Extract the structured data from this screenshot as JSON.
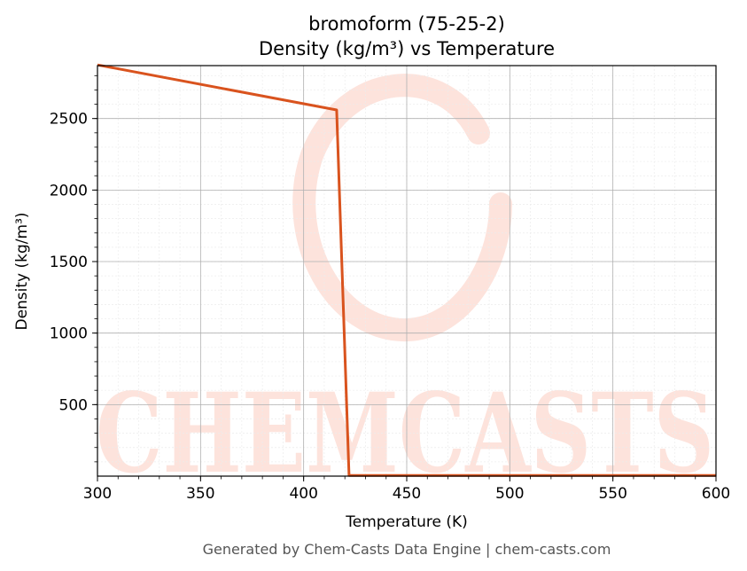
{
  "chart_data": {
    "type": "line",
    "title_line1": "bromoform (75-25-2)",
    "title_line2": "Density (kg/m³) vs Temperature",
    "xlabel": "Temperature (K)",
    "ylabel": "Density (kg/m³)",
    "xlim": [
      300,
      600
    ],
    "ylim": [
      0,
      2870
    ],
    "x_ticks": [
      300,
      350,
      400,
      450,
      500,
      550,
      600
    ],
    "y_ticks": [
      500,
      1000,
      1500,
      2000,
      2500
    ],
    "grid": true,
    "series": [
      {
        "color": "#d9531e",
        "points": [
          [
            300,
            2875
          ],
          [
            416,
            2560
          ],
          [
            422,
            5
          ],
          [
            600,
            5
          ]
        ]
      }
    ]
  },
  "watermark": {
    "text": "CHEMCASTS",
    "color": "#fde3dc"
  },
  "footer": "Generated by Chem-Casts Data Engine | chem-casts.com"
}
